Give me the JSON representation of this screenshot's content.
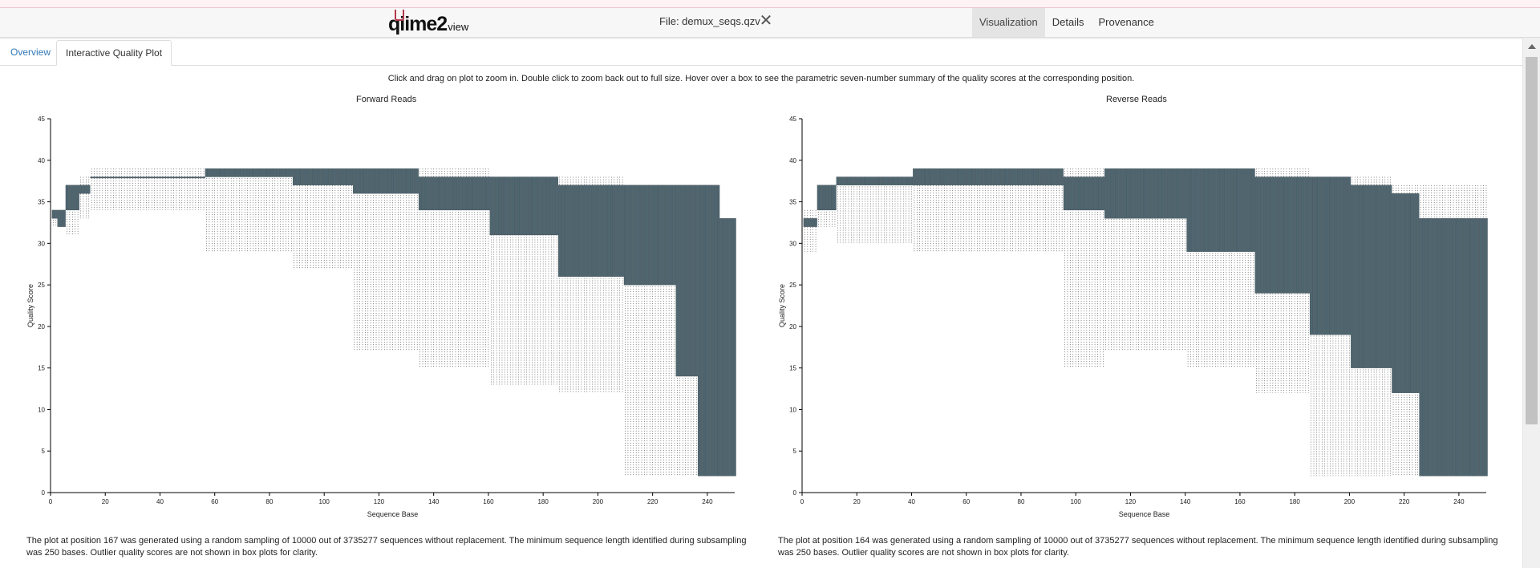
{
  "app": {
    "logo_main": "qiime2",
    "logo_sub": "view",
    "file_label": "File: demux_seqs.qzv",
    "nav_tabs": [
      "Visualization",
      "Details",
      "Provenance"
    ]
  },
  "sub_tabs": [
    "Overview",
    "Interactive Quality Plot"
  ],
  "instructions": "Click and drag on plot to zoom in. Double click to zoom back out to full size. Hover over a box to see the parametric seven-number summary of the quality scores at the corresponding position.",
  "plots": [
    {
      "title": "Forward Reads",
      "xlabel": "Sequence Base",
      "ylabel": "Quality Score",
      "note": "The plot at position 167 was generated using a random sampling of 10000 out of 3735277 sequences without replacement. The minimum sequence length identified during subsampling was 250 bases. Outlier quality scores are not shown in box plots for clarity."
    },
    {
      "title": "Reverse Reads",
      "xlabel": "Sequence Base",
      "ylabel": "Quality Score",
      "note": "The plot at position 164 was generated using a random sampling of 10000 out of 3735277 sequences without replacement. The minimum sequence length identified during subsampling was 250 bases. Outlier quality scores are not shown in box plots for clarity."
    }
  ],
  "chart_data": [
    {
      "type": "box",
      "title": "Forward Reads",
      "xlabel": "Sequence Base",
      "ylabel": "Quality Score",
      "xlim": [
        0,
        250
      ],
      "ylim": [
        0,
        45
      ],
      "xticks": [
        0,
        20,
        40,
        60,
        80,
        100,
        120,
        140,
        160,
        180,
        200,
        220,
        240
      ],
      "yticks": [
        0,
        5,
        10,
        15,
        20,
        25,
        30,
        35,
        40,
        45
      ],
      "box_color": "#4f6670",
      "segments": [
        {
          "range": [
            1,
            2
          ],
          "q1": 33,
          "q3": 34,
          "low": 32,
          "high": 34
        },
        {
          "range": [
            3,
            5
          ],
          "q1": 32,
          "q3": 34,
          "low": 32,
          "high": 34
        },
        {
          "range": [
            6,
            10
          ],
          "q1": 34,
          "q3": 37,
          "low": 31,
          "high": 37
        },
        {
          "range": [
            11,
            14
          ],
          "q1": 36,
          "q3": 37,
          "low": 33,
          "high": 38
        },
        {
          "range": [
            15,
            56
          ],
          "q1": 38,
          "q3": 38,
          "low": 34,
          "high": 39
        },
        {
          "range": [
            57,
            88
          ],
          "q1": 38,
          "q3": 39,
          "low": 29,
          "high": 39
        },
        {
          "range": [
            89,
            110
          ],
          "q1": 37,
          "q3": 39,
          "low": 27,
          "high": 39
        },
        {
          "range": [
            111,
            134
          ],
          "q1": 36,
          "q3": 39,
          "low": 17,
          "high": 39
        },
        {
          "range": [
            135,
            160
          ],
          "q1": 34,
          "q3": 38,
          "low": 15,
          "high": 39
        },
        {
          "range": [
            161,
            185
          ],
          "q1": 31,
          "q3": 38,
          "low": 13,
          "high": 38
        },
        {
          "range": [
            186,
            209
          ],
          "q1": 26,
          "q3": 37,
          "low": 12,
          "high": 38
        },
        {
          "range": [
            210,
            228
          ],
          "q1": 25,
          "q3": 37,
          "low": 2,
          "high": 37
        },
        {
          "range": [
            229,
            236
          ],
          "q1": 14,
          "q3": 37,
          "low": 2,
          "high": 37
        },
        {
          "range": [
            237,
            244
          ],
          "q1": 2,
          "q3": 37,
          "low": 2,
          "high": 37
        },
        {
          "range": [
            245,
            250
          ],
          "q1": 2,
          "q3": 33,
          "low": 2,
          "high": 33
        }
      ]
    },
    {
      "type": "box",
      "title": "Reverse Reads",
      "xlabel": "Sequence Base",
      "ylabel": "Quality Score",
      "xlim": [
        0,
        250
      ],
      "ylim": [
        0,
        45
      ],
      "xticks": [
        0,
        20,
        40,
        60,
        80,
        100,
        120,
        140,
        160,
        180,
        200,
        220,
        240
      ],
      "yticks": [
        0,
        5,
        10,
        15,
        20,
        25,
        30,
        35,
        40,
        45
      ],
      "box_color": "#4f6670",
      "segments": [
        {
          "range": [
            1,
            5
          ],
          "q1": 32,
          "q3": 33,
          "low": 29,
          "high": 34
        },
        {
          "range": [
            6,
            12
          ],
          "q1": 34,
          "q3": 37,
          "low": 32,
          "high": 37
        },
        {
          "range": [
            13,
            40
          ],
          "q1": 37,
          "q3": 38,
          "low": 30,
          "high": 38
        },
        {
          "range": [
            41,
            95
          ],
          "q1": 37,
          "q3": 39,
          "low": 29,
          "high": 39
        },
        {
          "range": [
            96,
            110
          ],
          "q1": 34,
          "q3": 38,
          "low": 15,
          "high": 39
        },
        {
          "range": [
            111,
            140
          ],
          "q1": 33,
          "q3": 39,
          "low": 17,
          "high": 39
        },
        {
          "range": [
            141,
            165
          ],
          "q1": 29,
          "q3": 39,
          "low": 15,
          "high": 39
        },
        {
          "range": [
            166,
            185
          ],
          "q1": 24,
          "q3": 38,
          "low": 12,
          "high": 39
        },
        {
          "range": [
            186,
            200
          ],
          "q1": 19,
          "q3": 38,
          "low": 2,
          "high": 38
        },
        {
          "range": [
            201,
            215
          ],
          "q1": 15,
          "q3": 37,
          "low": 2,
          "high": 38
        },
        {
          "range": [
            216,
            225
          ],
          "q1": 12,
          "q3": 36,
          "low": 2,
          "high": 37
        },
        {
          "range": [
            226,
            250
          ],
          "q1": 2,
          "q3": 33,
          "low": 2,
          "high": 37
        }
      ]
    }
  ]
}
